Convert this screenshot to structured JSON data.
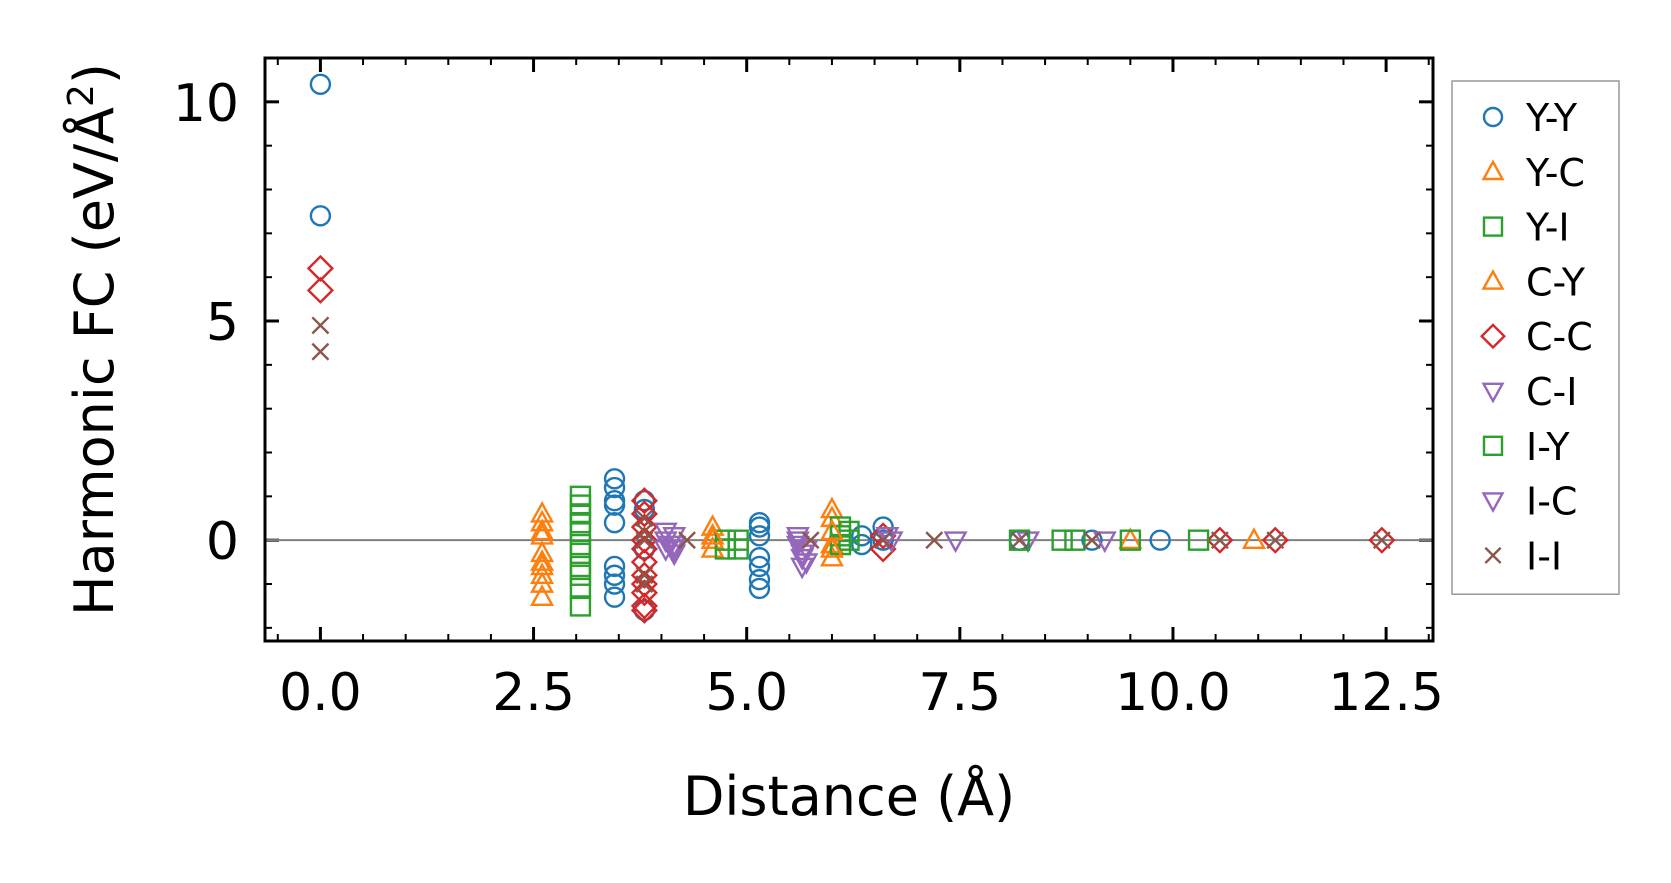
{
  "chart_data": {
    "type": "scatter",
    "title": "",
    "xlabel": "Distance (Å)",
    "ylabel_main": "Harmonic FC (eV/Å",
    "ylabel_sup": "2",
    "ylabel_close": ")",
    "xlim": [
      -0.65,
      13.05
    ],
    "ylim": [
      -2.3,
      11.0
    ],
    "xticks": [
      0.0,
      2.5,
      5.0,
      7.5,
      10.0,
      12.5
    ],
    "xtick_labels": [
      "0.0",
      "2.5",
      "5.0",
      "7.5",
      "10.0",
      "12.5"
    ],
    "yticks": [
      0,
      5,
      10
    ],
    "ytick_labels": [
      "0",
      "5",
      "10"
    ],
    "x_minor_step": 0.5,
    "y_minor_step": 1,
    "zero_line": true,
    "legend_position": "outside-right",
    "series": [
      {
        "name": "Y-Y",
        "marker": "circle",
        "color": "#1f77b4",
        "x": [
          0,
          0,
          3.45,
          3.45,
          3.45,
          3.45,
          3.45,
          3.45,
          3.45,
          3.45,
          3.45,
          3.8,
          3.8,
          3.8,
          3.8,
          5.15,
          5.15,
          5.15,
          5.15,
          5.15,
          5.15,
          5.15,
          6.35,
          6.35,
          6.6,
          6.6,
          8.2,
          9.05,
          9.85
        ],
        "y": [
          10.4,
          7.4,
          1.4,
          1.2,
          0.9,
          0.8,
          0.4,
          -0.6,
          -0.8,
          -1.0,
          -1.3,
          -1.6,
          0.9,
          0.7,
          -0.2,
          0.4,
          0.3,
          0.1,
          -0.4,
          -0.6,
          -0.9,
          -1.1,
          0.1,
          -0.1,
          0.3,
          0.0,
          0.0,
          0.0,
          0.0
        ]
      },
      {
        "name": "Y-C",
        "marker": "triangle-up",
        "color": "#ff7f0e",
        "x": [
          2.6,
          2.6,
          2.6,
          2.6,
          2.6,
          2.6,
          2.6,
          2.6,
          4.6,
          4.6,
          4.6,
          6.0,
          6.0,
          6.0,
          6.0,
          9.5,
          10.95
        ],
        "y": [
          0.6,
          0.4,
          0.1,
          -0.3,
          -0.5,
          -0.8,
          -1.0,
          -1.3,
          0.3,
          0.0,
          -0.2,
          0.7,
          0.5,
          -0.1,
          -0.4,
          0.0,
          0.0
        ]
      },
      {
        "name": "Y-I",
        "marker": "square",
        "color": "#2ca02c",
        "x": [
          3.05,
          3.05,
          3.05,
          3.05,
          3.05,
          3.05,
          3.05,
          3.05,
          3.05,
          3.05,
          3.05,
          4.75,
          4.75,
          4.9,
          4.9,
          6.1,
          6.1,
          6.1,
          6.2,
          6.2
        ],
        "y": [
          1.0,
          0.8,
          0.6,
          0.4,
          0.2,
          -0.1,
          -0.3,
          -0.6,
          -0.8,
          -1.1,
          -1.5,
          0.0,
          -0.2,
          0.0,
          -0.2,
          0.3,
          0.1,
          -0.1,
          0.2,
          0.0
        ]
      },
      {
        "name": "C-Y",
        "marker": "triangle-up",
        "color": "#ff7f0e",
        "x": [
          2.6,
          2.6,
          4.6,
          6.0,
          6.0
        ],
        "y": [
          0.2,
          -0.6,
          0.1,
          0.2,
          -0.2
        ]
      },
      {
        "name": "C-C",
        "marker": "diamond",
        "color": "#d62728",
        "x": [
          0,
          0,
          3.8,
          3.8,
          3.8,
          3.8,
          3.8,
          3.8,
          3.8,
          3.8,
          3.8,
          3.8,
          3.8,
          6.6,
          6.6,
          10.55,
          11.2,
          12.45
        ],
        "y": [
          6.2,
          5.7,
          0.9,
          0.6,
          0.3,
          0.0,
          -0.2,
          -0.5,
          -0.8,
          -1.0,
          -1.2,
          -1.5,
          -1.6,
          0.1,
          -0.2,
          0.0,
          0.0,
          0.0
        ]
      },
      {
        "name": "C-I",
        "marker": "triangle-down",
        "color": "#9467bd",
        "x": [
          4.05,
          4.05,
          4.05,
          4.15,
          4.15,
          4.15,
          4.15,
          5.6,
          5.6,
          5.6,
          5.65,
          5.65,
          5.65,
          5.7,
          6.7,
          7.45,
          8.3,
          9.2
        ],
        "y": [
          0.2,
          0.0,
          -0.2,
          0.1,
          -0.1,
          -0.2,
          -0.3,
          0.1,
          0.0,
          -0.1,
          -0.3,
          -0.4,
          -0.6,
          -0.5,
          0.0,
          0.0,
          0.0,
          0.0
        ]
      },
      {
        "name": "I-Y",
        "marker": "square",
        "color": "#2ca02c",
        "x": [
          8.2,
          8.7,
          8.85,
          9.5,
          10.3
        ],
        "y": [
          0.0,
          0.0,
          0.0,
          0.0,
          0.0
        ]
      },
      {
        "name": "I-C",
        "marker": "triangle-down",
        "color": "#9467bd",
        "x": [
          4.1,
          5.7,
          6.65
        ],
        "y": [
          -0.1,
          -0.2,
          0.1
        ]
      },
      {
        "name": "I-I",
        "marker": "x",
        "color": "#8c564b",
        "x": [
          0,
          0,
          3.8,
          3.8,
          3.8,
          3.8,
          3.8,
          4.3,
          5.75,
          6.6,
          7.2,
          8.2,
          9.05,
          10.55,
          11.2,
          12.45
        ],
        "y": [
          4.9,
          4.3,
          0.5,
          0.2,
          0.0,
          -0.8,
          -1.0,
          0.0,
          0.0,
          0.0,
          0.0,
          0.0,
          0.0,
          0.0,
          0.0,
          0.0
        ]
      }
    ]
  }
}
